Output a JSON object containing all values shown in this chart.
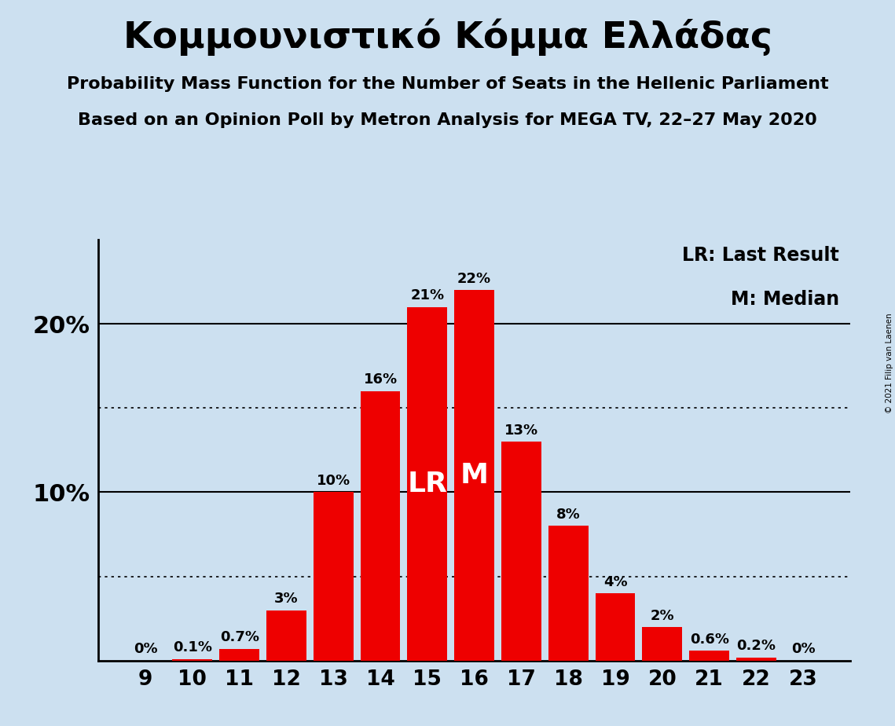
{
  "title": "Κομμουνιστικό Κόμμα Ελλάδας",
  "subtitle1": "Probability Mass Function for the Number of Seats in the Hellenic Parliament",
  "subtitle2": "Based on an Opinion Poll by Metron Analysis for MEGA TV, 22–27 May 2020",
  "copyright": "© 2021 Filip van Laenen",
  "seats": [
    9,
    10,
    11,
    12,
    13,
    14,
    15,
    16,
    17,
    18,
    19,
    20,
    21,
    22,
    23
  ],
  "probabilities": [
    0.0,
    0.1,
    0.7,
    3.0,
    10.0,
    16.0,
    21.0,
    22.0,
    13.0,
    8.0,
    4.0,
    2.0,
    0.6,
    0.2,
    0.0
  ],
  "bar_color": "#ee0000",
  "background_color": "#cce0f0",
  "last_result": 15,
  "median": 16,
  "lr_label": "LR",
  "m_label": "M",
  "legend_lr": "LR: Last Result",
  "legend_m": "M: Median",
  "dotted_lines": [
    5.0,
    15.0
  ],
  "solid_lines": [
    10.0,
    20.0
  ],
  "ylim": [
    0,
    25
  ],
  "xlim": [
    8.0,
    24.0
  ],
  "bar_label_fontsize": 13,
  "xtick_fontsize": 19,
  "ytick_fontsize": 22,
  "title_fontsize": 34,
  "subtitle_fontsize": 16,
  "legend_fontsize": 17,
  "lr_m_fontsize": 26
}
